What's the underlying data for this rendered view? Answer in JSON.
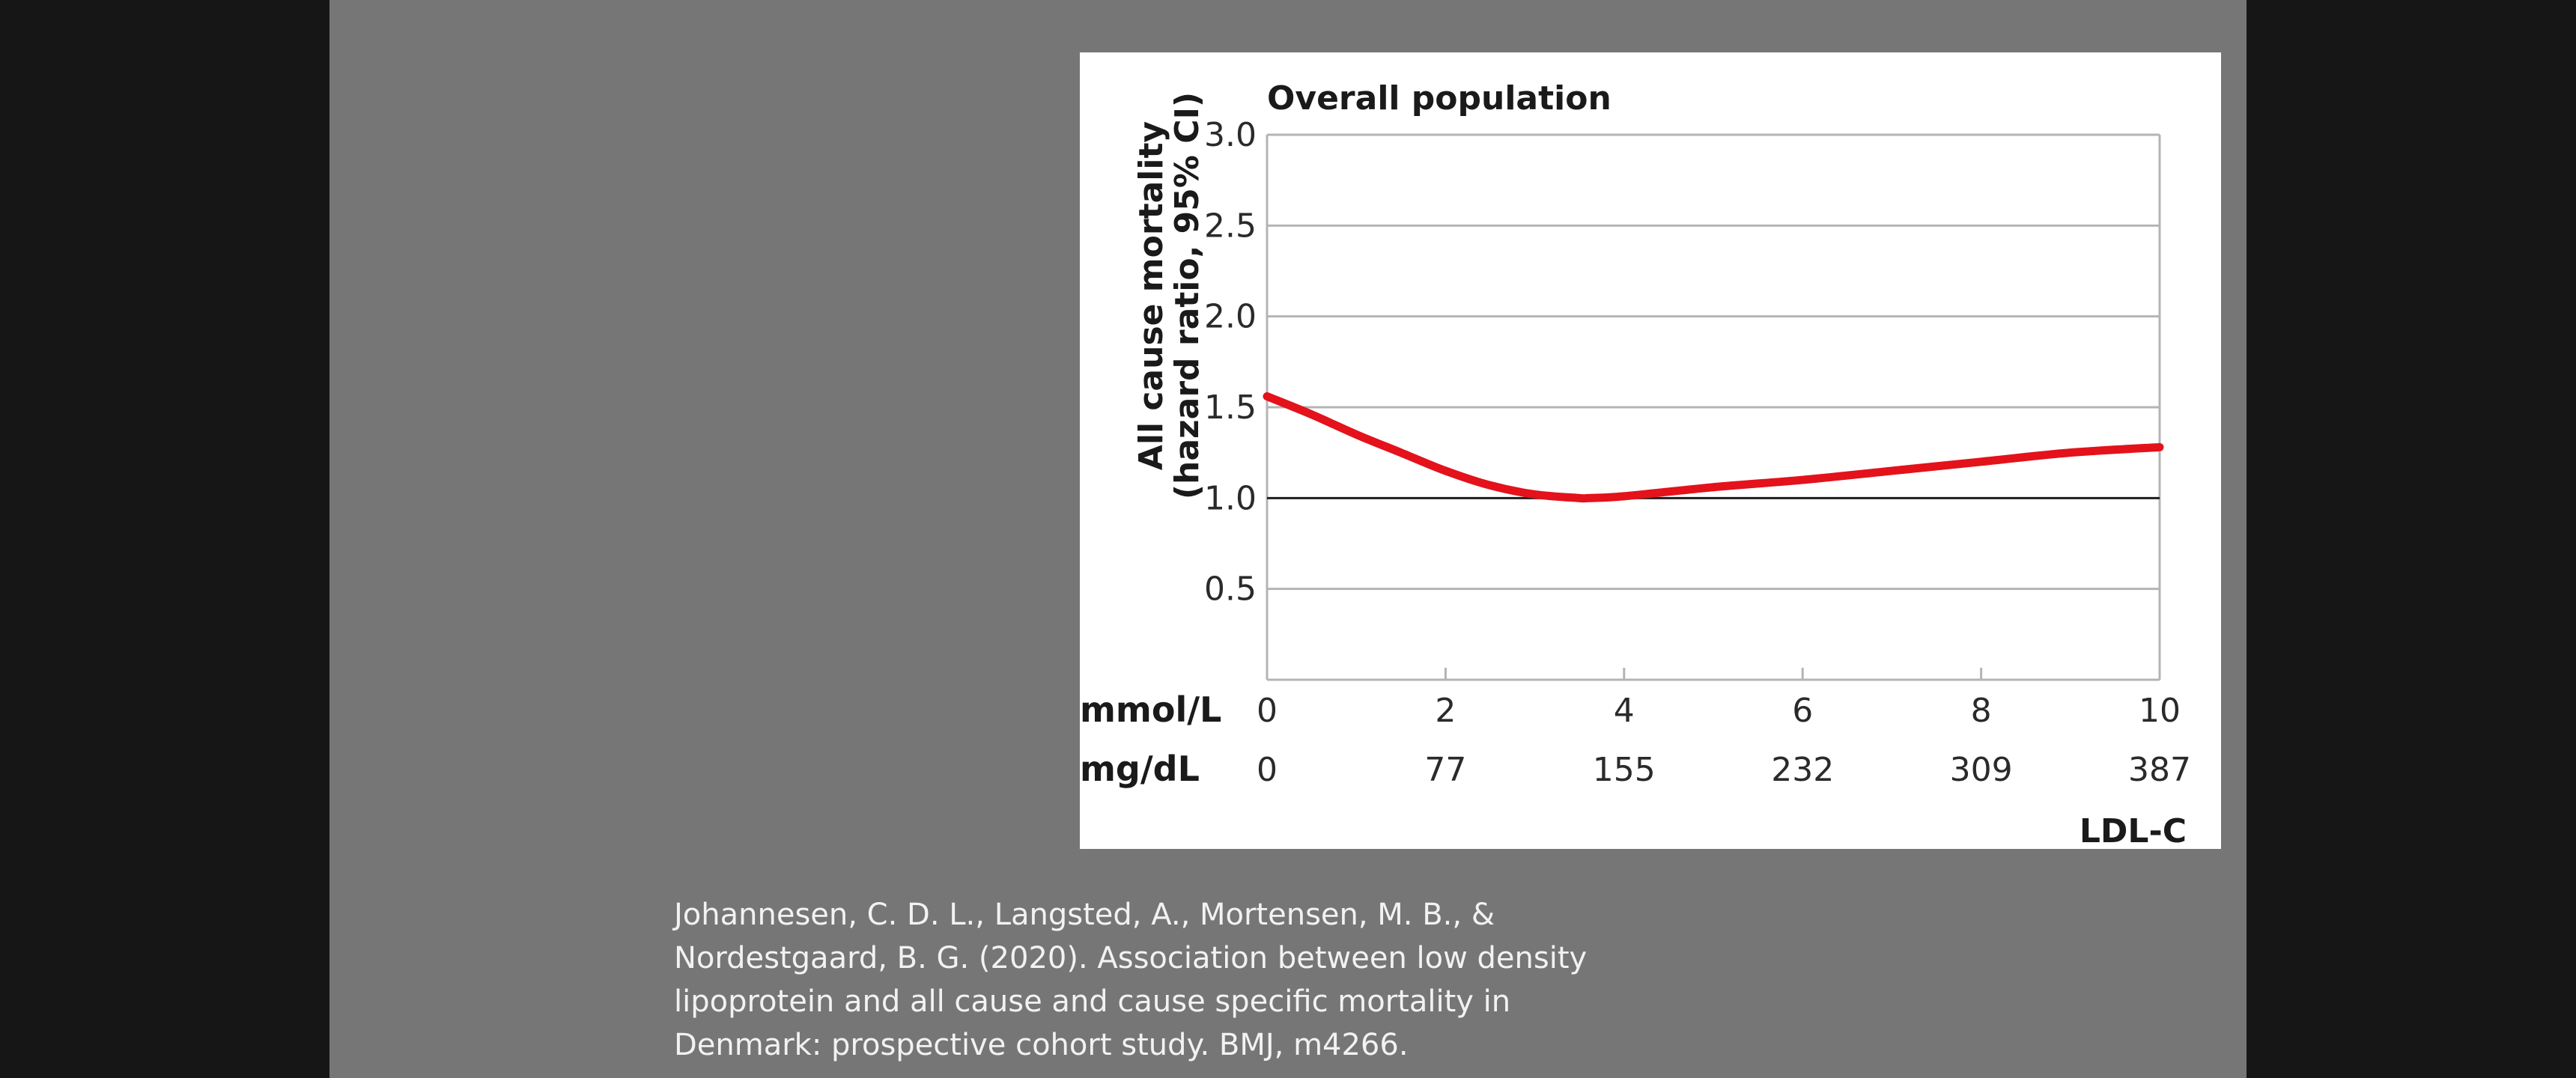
{
  "chart_data": {
    "type": "line",
    "title": "Overall population",
    "ylabel_lines": [
      "All cause mortality",
      "(hazard ratio, 95% CI)"
    ],
    "y_ticks": [
      "0.5",
      "1.0",
      "1.5",
      "2.0",
      "2.5",
      "3.0"
    ],
    "y_tick_values": [
      0.5,
      1.0,
      1.5,
      2.0,
      2.5,
      3.0
    ],
    "ylim": [
      0,
      3.0
    ],
    "xlim": [
      0,
      10
    ],
    "x_tick_values": [
      0,
      2,
      4,
      6,
      8,
      10
    ],
    "x_unit_primary": "mmol/L",
    "x_ticks_primary": [
      "0",
      "2",
      "4",
      "6",
      "8",
      "10"
    ],
    "x_unit_secondary": "mg/dL",
    "x_ticks_secondary": [
      "0",
      "77",
      "155",
      "232",
      "309",
      "387"
    ],
    "xlabel": "LDL-C",
    "reference_line": 1.0,
    "series": [
      {
        "color": "#e3121b",
        "x": [
          0,
          0.5,
          1,
          1.5,
          2,
          2.5,
          3,
          3.5,
          3.6,
          4,
          5,
          6,
          7,
          8,
          9,
          10
        ],
        "y": [
          1.56,
          1.46,
          1.35,
          1.25,
          1.15,
          1.07,
          1.02,
          1.0,
          1.0,
          1.01,
          1.06,
          1.1,
          1.15,
          1.2,
          1.25,
          1.28
        ]
      }
    ],
    "grid": true
  },
  "citation": {
    "lines": [
      "Johannesen, C. D. L., Langsted, A., Mortensen, M. B., &",
      "Nordestgaard, B. G. (2020). Association between low density",
      "lipoprotein and all cause and cause specific mortality in",
      "Denmark: prospective cohort study. BMJ, m4266."
    ]
  }
}
